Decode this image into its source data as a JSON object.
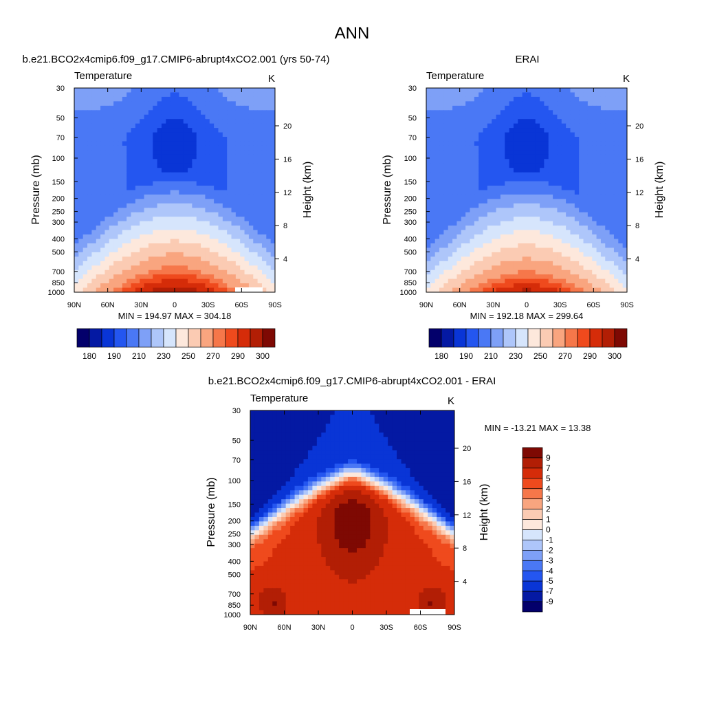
{
  "page_title": "ANN",
  "panels": [
    {
      "title": "b.e21.BCO2x4cmip6.f09_g17.CMIP6-abrupt4xCO2.001 (yrs 50-74)",
      "var_label": "Temperature",
      "unit": "K",
      "ylabel": "Pressure (mb)",
      "ylabel_right": "Height (km)",
      "minmax": "MIN = 194.97  MAX = 304.18"
    },
    {
      "title": "ERAI",
      "var_label": "Temperature",
      "unit": "K",
      "ylabel": "Pressure (mb)",
      "ylabel_right": "Height (km)",
      "minmax": "MIN = 192.18  MAX = 299.64"
    },
    {
      "title": "b.e21.BCO2x4cmip6.f09_g17.CMIP6-abrupt4xCO2.001 - ERAI",
      "var_label": "Temperature",
      "unit": "K",
      "ylabel": "Pressure (mb)",
      "ylabel_right": "Height (km)",
      "minmax": "MIN = -13.21  MAX =  13.38"
    }
  ],
  "chart_data": [
    {
      "type": "heatmap",
      "title": "b.e21.BCO2x4cmip6.f09_g17.CMIP6-abrupt4xCO2.001 (yrs 50-74)",
      "variable": "Temperature",
      "unit": "K",
      "xlabel": "",
      "ylabel": "Pressure (mb)",
      "ylabel_right": "Height (km)",
      "x_ticks": [
        "90N",
        "60N",
        "30N",
        "0",
        "30S",
        "60S",
        "90S"
      ],
      "y_ticks": [
        30,
        50,
        70,
        100,
        150,
        200,
        250,
        300,
        400,
        500,
        700,
        850,
        1000
      ],
      "y_right_ticks": [
        20,
        16,
        12,
        8,
        4
      ],
      "y_scale": "log",
      "ylim": [
        1000,
        30
      ],
      "min": 194.97,
      "max": 304.18,
      "colorbar_labels": [
        "180",
        "190",
        "210",
        "230",
        "250",
        "270",
        "290",
        "300"
      ]
    },
    {
      "type": "heatmap",
      "title": "ERAI",
      "variable": "Temperature",
      "unit": "K",
      "xlabel": "",
      "ylabel": "Pressure (mb)",
      "ylabel_right": "Height (km)",
      "x_ticks": [
        "90N",
        "60N",
        "30N",
        "0",
        "30S",
        "60S",
        "90S"
      ],
      "y_ticks": [
        30,
        50,
        70,
        100,
        150,
        200,
        250,
        300,
        400,
        500,
        700,
        850,
        1000
      ],
      "y_right_ticks": [
        20,
        16,
        12,
        8,
        4
      ],
      "y_scale": "log",
      "ylim": [
        1000,
        30
      ],
      "min": 192.18,
      "max": 299.64,
      "colorbar_labels": [
        "180",
        "190",
        "210",
        "230",
        "250",
        "270",
        "290",
        "300"
      ]
    },
    {
      "type": "heatmap",
      "title": "b.e21.BCO2x4cmip6.f09_g17.CMIP6-abrupt4xCO2.001 - ERAI",
      "variable": "Temperature",
      "unit": "K",
      "xlabel": "",
      "ylabel": "Pressure (mb)",
      "ylabel_right": "Height (km)",
      "x_ticks": [
        "90N",
        "60N",
        "30N",
        "0",
        "30S",
        "60S",
        "90S"
      ],
      "y_ticks": [
        30,
        50,
        70,
        100,
        150,
        200,
        250,
        300,
        400,
        500,
        700,
        850,
        1000
      ],
      "y_right_ticks": [
        20,
        16,
        12,
        8,
        4
      ],
      "y_scale": "log",
      "ylim": [
        1000,
        30
      ],
      "min": -13.21,
      "max": 13.38,
      "colorbar_labels": [
        "9",
        "7",
        "5",
        "4",
        "3",
        "2",
        "1",
        "0",
        "-1",
        "-2",
        "-3",
        "-4",
        "-5",
        "-7",
        "-9"
      ]
    }
  ],
  "colors": {
    "abs_scale": [
      "#03006b",
      "#0419a3",
      "#0935d6",
      "#2456f0",
      "#4a78f5",
      "#7ea0f7",
      "#aec6fa",
      "#d6e5fc",
      "#fde8dc",
      "#fbcbb3",
      "#f9a57f",
      "#f6774a",
      "#ef4a1d",
      "#d52c09",
      "#b21e05",
      "#7e0903"
    ],
    "diff_scale": [
      "#7e0903",
      "#b21e05",
      "#d52c09",
      "#ef4a1d",
      "#f6774a",
      "#f9a57f",
      "#fbcbb3",
      "#fde8dc",
      "#d6e5fc",
      "#aec6fa",
      "#7ea0f7",
      "#4a78f5",
      "#2456f0",
      "#0935d6",
      "#0419a3",
      "#03006b"
    ]
  }
}
